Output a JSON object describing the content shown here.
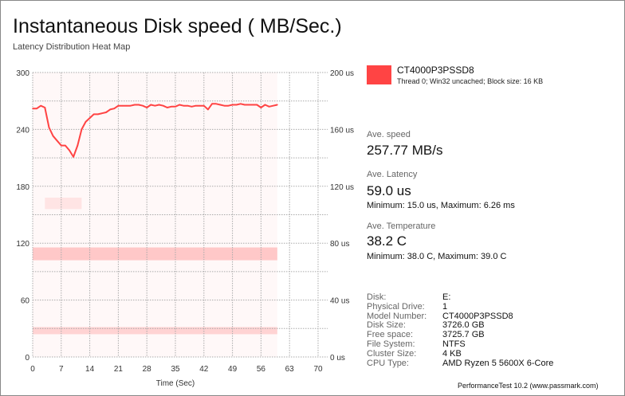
{
  "title": "Instantaneous Disk speed ( MB/Sec.)",
  "subtitle": "Latency Distribution Heat Map",
  "chart_data": {
    "type": "line",
    "title": "Instantaneous Disk speed ( MB/Sec.)",
    "subtitle": "Latency Distribution Heat Map",
    "xlabel": "Time (Sec)",
    "xlim": [
      0,
      70
    ],
    "ylim": [
      0,
      300
    ],
    "y2lim": [
      0,
      200
    ],
    "x_ticks": [
      "0",
      "7",
      "14",
      "21",
      "28",
      "35",
      "42",
      "49",
      "56",
      "63",
      "70"
    ],
    "y_ticks": [
      "0",
      "60",
      "120",
      "180",
      "240",
      "300"
    ],
    "y2_ticks": [
      "0 us",
      "40 us",
      "80 us",
      "120 us",
      "160 us",
      "200 us"
    ],
    "grid": true,
    "series": [
      {
        "name": "CT4000P3PSSD8",
        "color": "#ff4444",
        "x": [
          0,
          1,
          2,
          3,
          4,
          5,
          6,
          7,
          8,
          9,
          10,
          11,
          12,
          13,
          14,
          15,
          16,
          17,
          18,
          19,
          20,
          21,
          22,
          23,
          24,
          25,
          26,
          27,
          28,
          29,
          30,
          31,
          32,
          33,
          34,
          35,
          36,
          37,
          38,
          39,
          40,
          41,
          42,
          43,
          44,
          45,
          46,
          47,
          48,
          49,
          50,
          51,
          52,
          53,
          54,
          55,
          56,
          57,
          58,
          59,
          60
        ],
        "y": [
          262,
          262,
          265,
          263,
          242,
          233,
          228,
          223,
          223,
          218,
          211,
          223,
          240,
          248,
          252,
          256,
          256,
          257,
          258,
          261,
          262,
          265,
          265,
          265,
          265,
          266,
          266,
          265,
          263,
          266,
          265,
          266,
          265,
          263,
          264,
          264,
          266,
          265,
          265,
          264,
          265,
          265,
          265,
          261,
          267,
          267,
          266,
          265,
          265,
          266,
          266,
          267,
          266,
          266,
          266,
          266,
          263,
          266,
          264,
          265,
          266
        ]
      }
    ],
    "heatmap_bands": [
      {
        "latency_us": [
          68,
          77
        ],
        "x": [
          0,
          60
        ],
        "intensity": 0.6
      },
      {
        "latency_us": [
          16,
          21
        ],
        "x": [
          0,
          60
        ],
        "intensity": 0.45
      },
      {
        "latency_us": [
          104,
          112
        ],
        "x": [
          3,
          12
        ],
        "intensity": 0.25
      }
    ]
  },
  "legend": {
    "name": "CT4000P3PSSD8",
    "desc": "Thread 0; Win32 uncached; Block size: 16 KB",
    "color": "#ff4444"
  },
  "stats": {
    "speed_label": "Ave. speed",
    "speed": "257.77 MB/s",
    "latency_label": "Ave. Latency",
    "latency": "59.0 us",
    "latency_mm": "Minimum: 15.0 us, Maximum: 6.26 ms",
    "temp_label": "Ave. Temperature",
    "temp": "38.2 C",
    "temp_mm": "Minimum: 38.0 C, Maximum: 39.0 C"
  },
  "info": [
    {
      "k": "Disk:",
      "v": "E:"
    },
    {
      "k": "Physical Drive:",
      "v": "1"
    },
    {
      "k": "Model Number:",
      "v": "CT4000P3PSSD8"
    },
    {
      "k": "Disk Size:",
      "v": "3726.0 GB"
    },
    {
      "k": "Free space:",
      "v": "3725.7 GB"
    },
    {
      "k": "File System:",
      "v": "NTFS"
    },
    {
      "k": "Cluster Size:",
      "v": "4 KB"
    },
    {
      "k": "CPU Type:",
      "v": "AMD Ryzen 5 5600X 6-Core"
    }
  ],
  "watermark": "PerformanceTest 10.2 (www.passmark.com)"
}
